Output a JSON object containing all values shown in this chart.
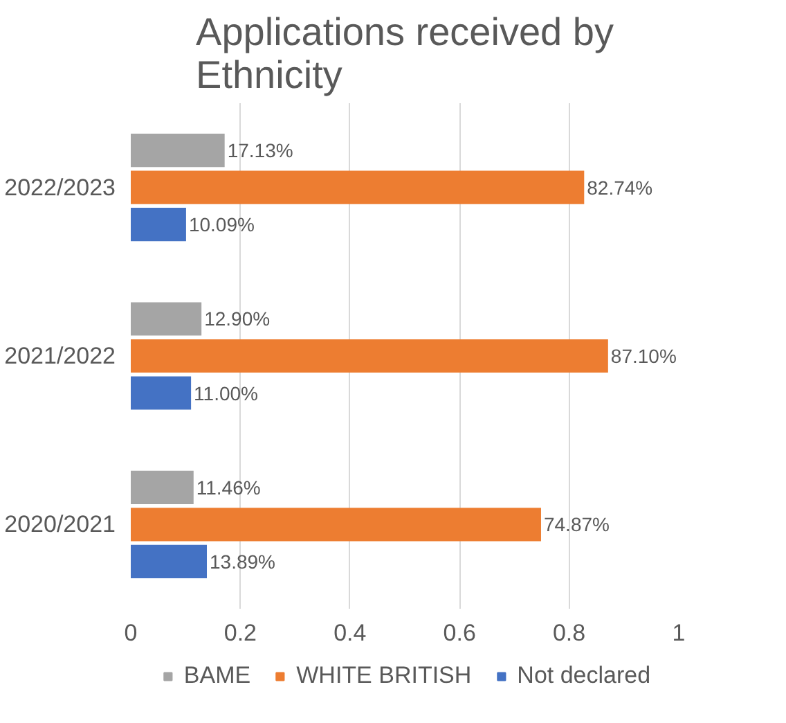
{
  "chart_data": {
    "type": "bar",
    "orientation": "horizontal",
    "title": "Applications received by Ethnicity",
    "categories": [
      "2022/2023",
      "2021/2022",
      "2020/2021"
    ],
    "series": [
      {
        "name": "BAME",
        "color": "#a5a5a5",
        "values": [
          0.1713,
          0.129,
          0.1146
        ],
        "value_labels": [
          "17.13%",
          "12.90%",
          "11.46%"
        ]
      },
      {
        "name": "WHITE BRITISH",
        "color": "#ed7d31",
        "values": [
          0.8274,
          0.871,
          0.7487
        ],
        "value_labels": [
          "82.74%",
          "87.10%",
          "74.87%"
        ]
      },
      {
        "name": "Not declared",
        "color": "#4472c4",
        "values": [
          0.1009,
          0.11,
          0.1389
        ],
        "value_labels": [
          "10.09%",
          "11.00%",
          "13.89%"
        ]
      }
    ],
    "xlim": [
      0,
      1
    ],
    "xticks": [
      0,
      0.2,
      0.4,
      0.6,
      0.8,
      1
    ],
    "grid": "x",
    "legend": "bottom"
  }
}
